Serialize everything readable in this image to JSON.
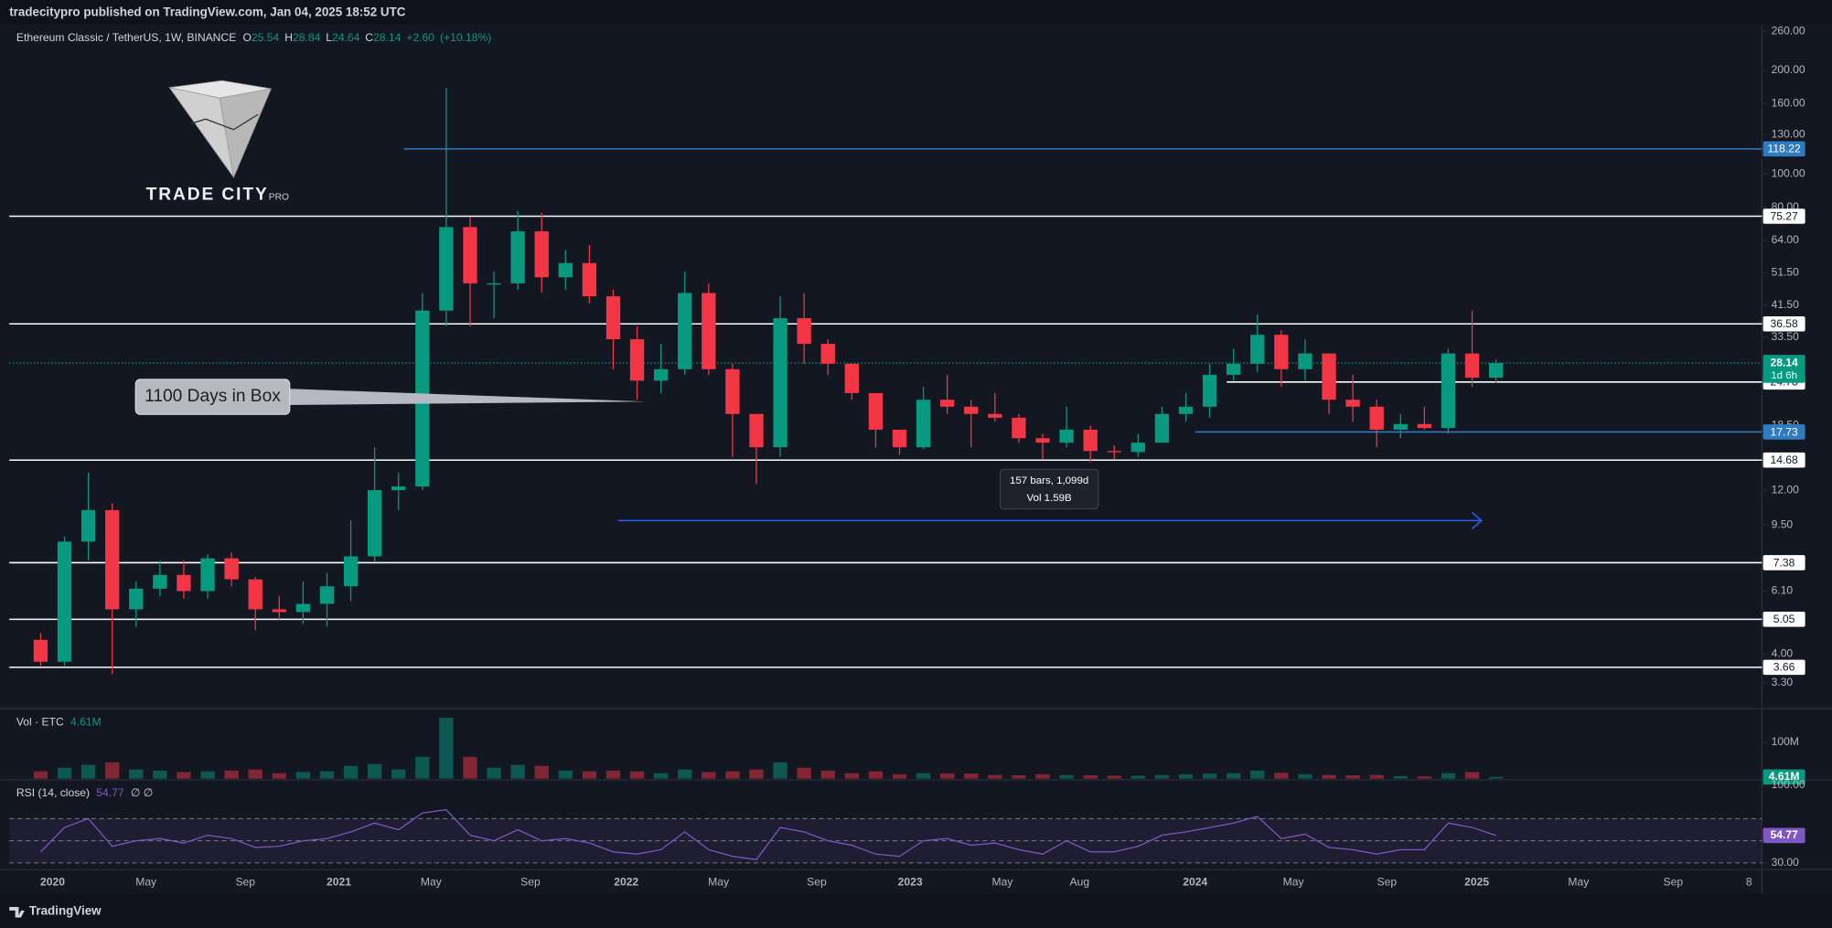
{
  "header": {
    "published": "tradecitypro published on TradingView.com, Jan 04, 2025 18:52 UTC"
  },
  "logo": {
    "name": "TRADE CITY",
    "suffix": "PRO"
  },
  "footer": {
    "brand": "TradingView"
  },
  "chart_data": {
    "type": "candlestick",
    "symbol": "Ethereum Classic / TetherUS, 1W, BINANCE",
    "last_bar": {
      "labels": [
        "O",
        "H",
        "L",
        "C"
      ],
      "open": 25.54,
      "high": 28.84,
      "low": 24.64,
      "close": 28.14,
      "change": {
        "value": 2.6,
        "label": "+2.60"
      },
      "change_pct": {
        "value": 10.18,
        "label": "(+10.18%)"
      },
      "countdown": "1d 6h"
    },
    "up_color": "#089981",
    "down_color": "#f23645",
    "log_scale": true,
    "grid": false,
    "ylim": [
      2.82,
      270
    ],
    "yticks": [
      {
        "value": 260,
        "label": "260.00"
      },
      {
        "value": 200,
        "label": "200.00"
      },
      {
        "value": 160,
        "label": "160.00"
      },
      {
        "value": 130,
        "label": "130.00"
      },
      {
        "value": 100,
        "label": "100.00"
      },
      {
        "value": 80,
        "label": "80.00"
      },
      {
        "value": 64,
        "label": "64.00"
      },
      {
        "value": 51.5,
        "label": "51.50"
      },
      {
        "value": 41.5,
        "label": "41.50"
      },
      {
        "value": 33.5,
        "label": "33.50"
      },
      {
        "value": 18.5,
        "label": "18.50"
      },
      {
        "value": 12,
        "label": "12.00"
      },
      {
        "value": 9.5,
        "label": "9.50"
      },
      {
        "value": 6.1,
        "label": "6.10"
      },
      {
        "value": 4,
        "label": "4.00"
      },
      {
        "value": 3.3,
        "label": "3.30"
      }
    ],
    "xtick_labels": [
      "2020",
      "May",
      "Sep",
      "2021",
      "May",
      "Sep",
      "2022",
      "May",
      "Sep",
      "2023",
      "May",
      "Aug",
      "2024",
      "May",
      "Sep",
      "2025",
      "May",
      "Sep",
      "8"
    ],
    "open": [
      4.4,
      3.8,
      8.5,
      10.5,
      5.4,
      6.2,
      6.8,
      6.1,
      7.6,
      6.6,
      5.4,
      5.3,
      5.6,
      6.3,
      7.7,
      12,
      12.3,
      40,
      70,
      48,
      48,
      68,
      50,
      55,
      44,
      33,
      25,
      27,
      45,
      27,
      20,
      16,
      38,
      32,
      28,
      23,
      18,
      16,
      22,
      21,
      20,
      19.5,
      17,
      16.5,
      18,
      15.6,
      15.5,
      16.5,
      20,
      21,
      26,
      28,
      34,
      27,
      30,
      22,
      21,
      18,
      18.7,
      18.2,
      30,
      25.5
    ],
    "high": [
      4.6,
      8.8,
      13.5,
      11,
      6.5,
      7.5,
      7.5,
      7.8,
      7.9,
      6.7,
      5.9,
      6.5,
      6.9,
      9.8,
      16,
      13.5,
      45,
      178,
      75,
      52,
      78,
      77,
      60,
      62,
      46,
      36,
      32,
      52,
      48,
      28,
      20,
      44,
      45,
      33,
      28,
      23,
      18,
      24,
      26,
      22,
      23,
      20,
      17.5,
      21,
      18.5,
      16.2,
      17.5,
      21,
      23,
      28,
      31,
      39,
      35,
      33,
      30,
      26,
      22,
      20,
      21,
      31,
      40,
      28.84
    ],
    "low": [
      3.7,
      3.7,
      7.5,
      3.5,
      4.8,
      5.9,
      5.8,
      5.8,
      6.3,
      4.7,
      5,
      4.9,
      4.8,
      5.7,
      7.4,
      10.5,
      12,
      36,
      36,
      38,
      46,
      45,
      46,
      42,
      27,
      22,
      23,
      26,
      26,
      15,
      12.5,
      15,
      28,
      26,
      22,
      16,
      15.2,
      15.8,
      20,
      16,
      19,
      16.5,
      14.8,
      16,
      14.5,
      14.8,
      15,
      16.5,
      19,
      19.5,
      25,
      26.5,
      24,
      25,
      20,
      19,
      16,
      17,
      18,
      17.5,
      24,
      24.64
    ],
    "close": [
      3.8,
      8.5,
      10.5,
      5.4,
      6.2,
      6.8,
      6.1,
      7.6,
      6.6,
      5.4,
      5.3,
      5.6,
      6.3,
      7.7,
      12,
      12.3,
      40,
      70,
      48,
      48,
      68,
      50,
      55,
      44,
      33,
      25,
      27,
      45,
      27,
      20,
      16,
      38,
      32,
      28,
      23,
      18,
      16,
      22,
      21,
      20,
      19.5,
      17,
      16.5,
      18,
      15.6,
      15.5,
      16.5,
      20,
      21,
      26,
      28,
      34,
      27,
      30,
      22,
      21,
      18,
      18.7,
      18.2,
      30,
      25.5,
      28.14
    ],
    "levels": [
      {
        "value": 118.22,
        "color": "#2f7bbf"
      },
      {
        "value": 75.27,
        "color": "#ffffff"
      },
      {
        "value": 36.58,
        "color": "#ffffff"
      },
      {
        "value": 24.78,
        "color": "#ffffff"
      },
      {
        "value": 17.73,
        "color": "#2f7bbf"
      },
      {
        "value": 14.68,
        "color": "#ffffff"
      },
      {
        "value": 7.38,
        "color": "#ffffff"
      },
      {
        "value": 5.05,
        "color": "#ffffff"
      },
      {
        "value": 3.66,
        "color": "#ffffff"
      }
    ],
    "annotations": {
      "box": "1100 Days in Box",
      "measure_bars": "157 bars, 1,099d",
      "measure_vol": "Vol 1.59B"
    },
    "volume": {
      "name": "Vol · ETC",
      "ylim": [
        0,
        190
      ],
      "yticks": [
        {
          "value": 100,
          "label": "100M"
        }
      ],
      "last": {
        "value": 4.61,
        "label": "4.61M"
      },
      "values": [
        20,
        30,
        38,
        45,
        25,
        22,
        18,
        20,
        22,
        25,
        15,
        18,
        20,
        35,
        40,
        25,
        60,
        168,
        60,
        30,
        38,
        35,
        22,
        20,
        22,
        20,
        15,
        25,
        18,
        20,
        25,
        45,
        30,
        22,
        15,
        20,
        12,
        15,
        14,
        14,
        10,
        9,
        12,
        10,
        9,
        8,
        8,
        10,
        12,
        14,
        15,
        22,
        16,
        12,
        10,
        9,
        10,
        7,
        6,
        15,
        18,
        4.61
      ]
    },
    "rsi": {
      "name": "RSI (14, close)",
      "extra": "∅ ∅",
      "color": "#7e57c2",
      "ylim": [
        25,
        104
      ],
      "yticks": [
        {
          "value": 100,
          "label": "100.00"
        },
        {
          "value": 30,
          "label": "30.00"
        }
      ],
      "bands": [
        70,
        50,
        30
      ],
      "values": [
        40,
        62,
        70,
        45,
        50,
        52,
        48,
        55,
        52,
        44,
        45,
        50,
        52,
        58,
        66,
        60,
        75,
        78,
        55,
        50,
        60,
        50,
        52,
        48,
        40,
        38,
        42,
        58,
        42,
        36,
        33,
        62,
        58,
        50,
        46,
        38,
        36,
        50,
        52,
        46,
        48,
        42,
        38,
        50,
        40,
        40,
        45,
        55,
        58,
        62,
        66,
        72,
        52,
        56,
        44,
        42,
        38,
        42,
        42,
        66,
        62,
        54.77
      ]
    }
  }
}
